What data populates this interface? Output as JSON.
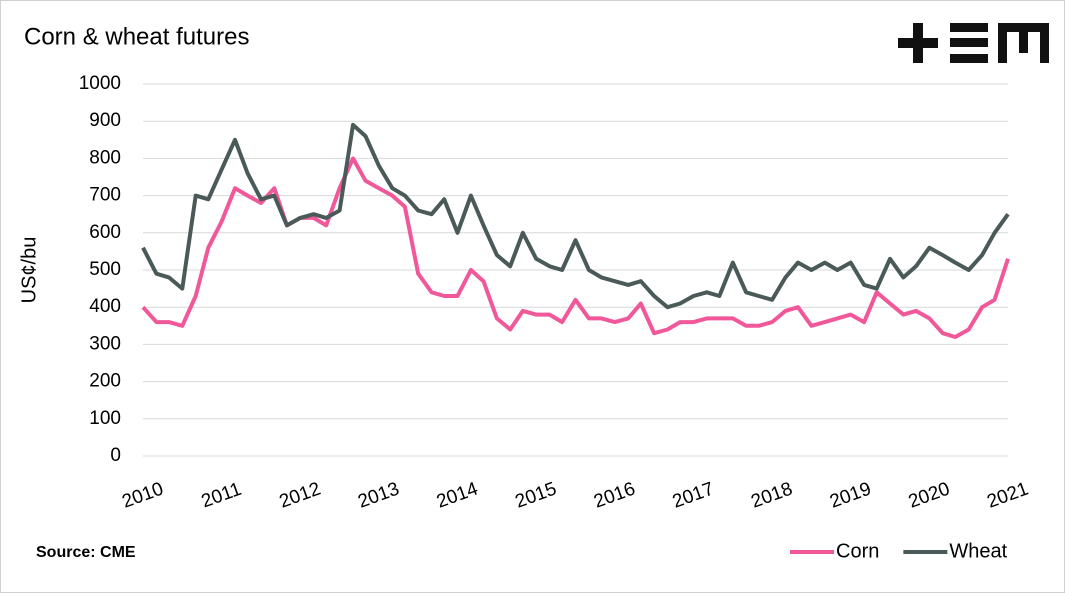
{
  "chart_data": {
    "type": "line",
    "title": "Corn & wheat futures",
    "source": "Source: CME",
    "y_label": "US¢/bu",
    "x": [
      2010,
      2010.17,
      2010.33,
      2010.5,
      2010.67,
      2010.83,
      2011,
      2011.17,
      2011.33,
      2011.5,
      2011.67,
      2011.83,
      2012,
      2012.17,
      2012.33,
      2012.5,
      2012.67,
      2012.83,
      2013,
      2013.17,
      2013.33,
      2013.5,
      2013.67,
      2013.83,
      2014,
      2014.17,
      2014.33,
      2014.5,
      2014.67,
      2014.83,
      2015,
      2015.17,
      2015.33,
      2015.5,
      2015.67,
      2015.83,
      2016,
      2016.17,
      2016.33,
      2016.5,
      2016.67,
      2016.83,
      2017,
      2017.17,
      2017.33,
      2017.5,
      2017.67,
      2017.83,
      2018,
      2018.17,
      2018.33,
      2018.5,
      2018.67,
      2018.83,
      2019,
      2019.17,
      2019.33,
      2019.5,
      2019.67,
      2019.83,
      2020,
      2020.17,
      2020.33,
      2020.5,
      2020.67,
      2020.83,
      2021
    ],
    "series": [
      {
        "name": "Corn",
        "color": "#f0589a",
        "values": [
          400,
          360,
          360,
          350,
          430,
          560,
          630,
          720,
          700,
          680,
          720,
          620,
          640,
          640,
          620,
          720,
          800,
          740,
          720,
          700,
          670,
          490,
          440,
          430,
          430,
          500,
          470,
          370,
          340,
          390,
          380,
          380,
          360,
          420,
          370,
          370,
          360,
          370,
          410,
          330,
          340,
          360,
          360,
          370,
          370,
          370,
          350,
          350,
          360,
          390,
          400,
          350,
          360,
          370,
          380,
          360,
          440,
          410,
          380,
          390,
          370,
          330,
          320,
          340,
          400,
          420,
          530
        ]
      },
      {
        "name": "Wheat",
        "color": "#4a5a58",
        "values": [
          560,
          490,
          480,
          450,
          700,
          690,
          770,
          850,
          760,
          690,
          700,
          620,
          640,
          650,
          640,
          660,
          890,
          860,
          780,
          720,
          700,
          660,
          650,
          690,
          600,
          700,
          620,
          540,
          510,
          600,
          530,
          510,
          500,
          580,
          500,
          480,
          470,
          460,
          470,
          430,
          400,
          410,
          430,
          440,
          430,
          520,
          440,
          430,
          420,
          480,
          520,
          500,
          520,
          500,
          520,
          460,
          450,
          530,
          480,
          510,
          560,
          540,
          520,
          500,
          540,
          600,
          650
        ]
      }
    ],
    "xlim": [
      2010,
      2021
    ],
    "xticks": [
      2010,
      2011,
      2012,
      2013,
      2014,
      2015,
      2016,
      2017,
      2018,
      2019,
      2020,
      2021
    ],
    "ylim": [
      0,
      1000
    ],
    "yticks": [
      0,
      100,
      200,
      300,
      400,
      500,
      600,
      700,
      800,
      900,
      1000
    ],
    "grid": true
  }
}
